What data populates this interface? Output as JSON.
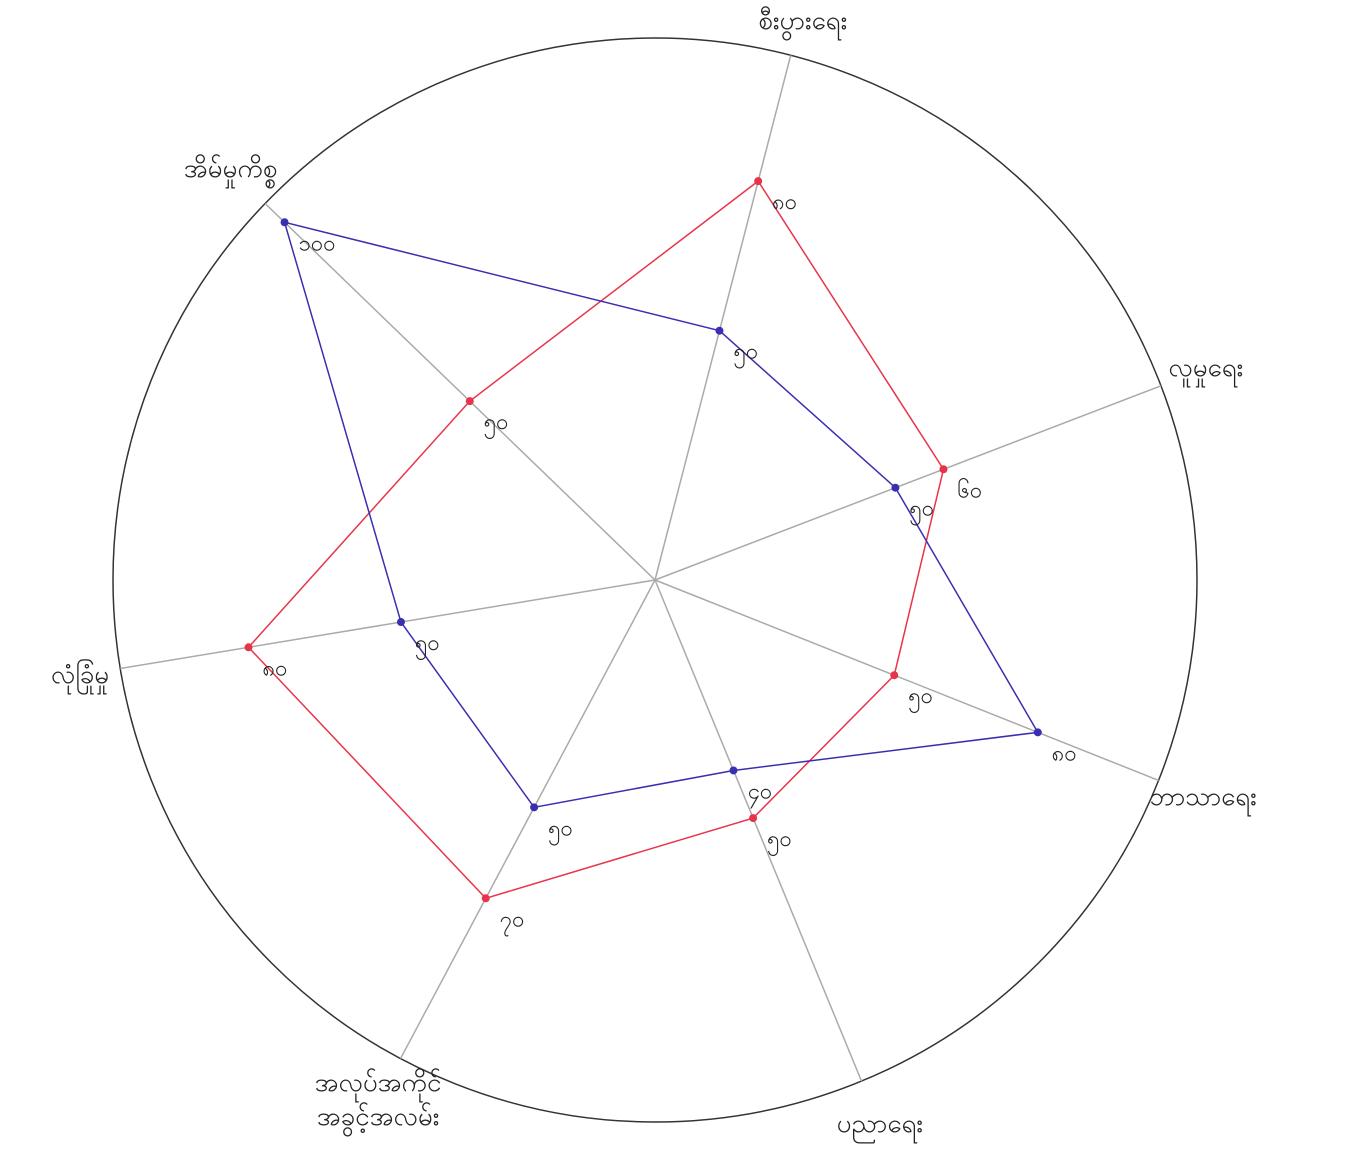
{
  "chart_data": {
    "type": "radar",
    "categories": [
      "စီးပွားရေး",
      "လူမှုရေး",
      "ဘာသာရေး",
      "ပညာရေး",
      "အလုပ်အကိုင်\nအခွင့်အလမ်း",
      "လုံခြုံမှု",
      "အိမ်မှုကိစ္စ"
    ],
    "rlim": [
      0,
      100
    ],
    "series": [
      {
        "color": "#e8344a",
        "values": [
          80,
          60,
          50,
          50,
          70,
          80,
          50
        ],
        "value_labels": [
          "၈၀",
          "၆၀",
          "၅၀",
          "၅၀",
          "၇၀",
          "၈၀",
          "၅၀"
        ]
      },
      {
        "color": "#3a2fb0",
        "values": [
          50,
          50,
          80,
          40,
          50,
          50,
          100
        ],
        "value_labels": [
          "၅၀",
          "၅၀",
          "၈၀",
          "၄၀",
          "၅၀",
          "၅၀",
          "၁၀၀"
        ]
      }
    ]
  }
}
